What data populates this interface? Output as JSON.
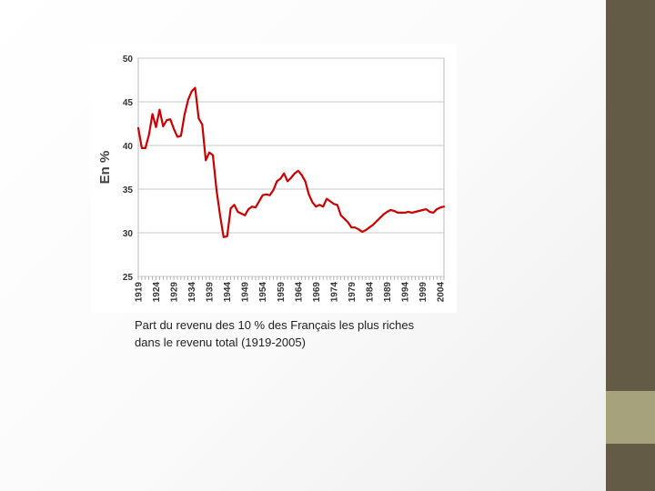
{
  "slide": {
    "caption_line1": "Part du revenu des 10 % des Français les plus riches",
    "caption_line2": "dans le revenu total (1919-2005)",
    "colors": {
      "sidebar_dark": "#635b45",
      "sidebar_light": "#a6a27b",
      "series": "#cc0000"
    }
  },
  "chart_data": {
    "type": "line",
    "title": "",
    "xlabel": "",
    "ylabel": "En %",
    "ylim": [
      25,
      50
    ],
    "yticks": [
      25,
      30,
      35,
      40,
      45,
      50
    ],
    "xlim": [
      1919,
      2005
    ],
    "xticks": [
      1919,
      1924,
      1929,
      1934,
      1939,
      1944,
      1949,
      1954,
      1959,
      1964,
      1969,
      1974,
      1979,
      1984,
      1989,
      1994,
      1999,
      2004
    ],
    "grid": true,
    "legend": "none",
    "series": [
      {
        "color": "#cc0000",
        "x": [
          1919,
          1920,
          1921,
          1922,
          1923,
          1924,
          1925,
          1926,
          1927,
          1928,
          1929,
          1930,
          1931,
          1932,
          1933,
          1934,
          1935,
          1936,
          1937,
          1938,
          1939,
          1940,
          1941,
          1942,
          1943,
          1944,
          1945,
          1946,
          1947,
          1948,
          1949,
          1950,
          1951,
          1952,
          1953,
          1954,
          1955,
          1956,
          1957,
          1958,
          1959,
          1960,
          1961,
          1962,
          1963,
          1964,
          1965,
          1966,
          1967,
          1968,
          1969,
          1970,
          1971,
          1972,
          1973,
          1974,
          1975,
          1976,
          1977,
          1978,
          1979,
          1980,
          1981,
          1982,
          1983,
          1984,
          1985,
          1986,
          1987,
          1988,
          1989,
          1990,
          1991,
          1992,
          1993,
          1994,
          1995,
          1996,
          1997,
          1998,
          1999,
          2000,
          2001,
          2002,
          2003,
          2004,
          2005
        ],
        "values": [
          42.0,
          39.7,
          39.7,
          41.2,
          43.6,
          42.1,
          44.1,
          42.2,
          42.9,
          43.0,
          41.9,
          41.0,
          41.1,
          43.5,
          45.2,
          46.2,
          46.6,
          43.1,
          42.4,
          38.3,
          39.2,
          38.9,
          34.9,
          32.0,
          29.5,
          29.6,
          32.8,
          33.2,
          32.4,
          32.2,
          32.0,
          32.7,
          33.0,
          32.9,
          33.6,
          34.3,
          34.4,
          34.3,
          34.9,
          35.9,
          36.2,
          36.8,
          35.9,
          36.3,
          36.8,
          37.1,
          36.6,
          35.9,
          34.4,
          33.5,
          33.0,
          33.2,
          33.0,
          33.9,
          33.6,
          33.3,
          33.2,
          32.0,
          31.6,
          31.2,
          30.6,
          30.6,
          30.4,
          30.1,
          30.3,
          30.6,
          30.9,
          31.3,
          31.7,
          32.1,
          32.4,
          32.6,
          32.5,
          32.3,
          32.3,
          32.3,
          32.4,
          32.3,
          32.4,
          32.5,
          32.6,
          32.7,
          32.4,
          32.3,
          32.7,
          32.9,
          33.0
        ]
      }
    ]
  }
}
